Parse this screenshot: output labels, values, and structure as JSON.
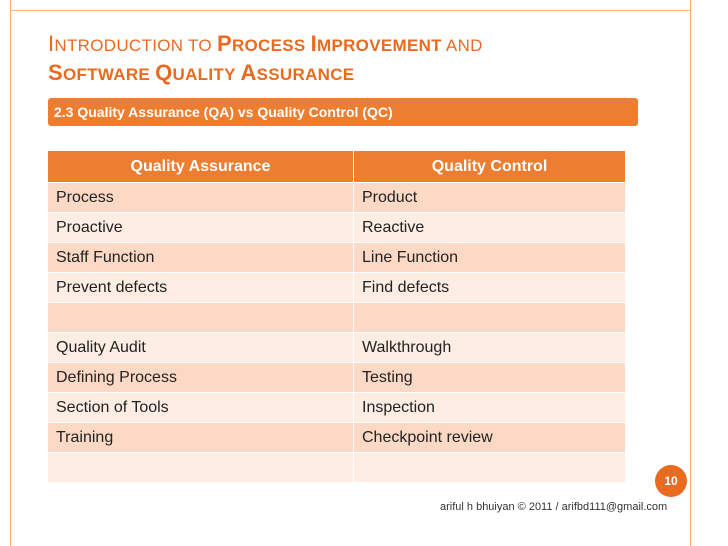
{
  "slide": {
    "title_line1": [
      {
        "text": "I",
        "big": true,
        "bold": false
      },
      {
        "text": "ntroduction to ",
        "big": false,
        "bold": false
      },
      {
        "text": "P",
        "big": true,
        "bold": true
      },
      {
        "text": "rocess ",
        "big": false,
        "bold": true
      },
      {
        "text": "I",
        "big": true,
        "bold": true
      },
      {
        "text": "mprovement",
        "big": false,
        "bold": true
      },
      {
        "text": " and",
        "big": false,
        "bold": false
      }
    ],
    "title_line2": [
      {
        "text": "S",
        "big": true,
        "bold": true
      },
      {
        "text": "oftware ",
        "big": false,
        "bold": true
      },
      {
        "text": "Q",
        "big": true,
        "bold": true
      },
      {
        "text": "uality ",
        "big": false,
        "bold": true
      },
      {
        "text": "A",
        "big": true,
        "bold": true
      },
      {
        "text": "ssurance",
        "big": false,
        "bold": true
      }
    ],
    "subtitle": "2.3 Quality Assurance (QA) vs Quality Control (QC)",
    "page_number": "10",
    "footer": "ariful h bhuiyan © 2011 / arifbd111@gmail.com"
  },
  "table": {
    "headers": [
      "Quality Assurance",
      "Quality Control"
    ],
    "rows": [
      [
        "Process",
        "Product"
      ],
      [
        "Proactive",
        "Reactive"
      ],
      [
        "Staff Function",
        "Line Function"
      ],
      [
        "Prevent defects",
        "Find defects"
      ],
      [
        "",
        ""
      ],
      [
        "Quality Audit",
        "Walkthrough"
      ],
      [
        "Defining Process",
        "Testing"
      ],
      [
        "Section of Tools",
        "Inspection"
      ],
      [
        "Training",
        "Checkpoint review"
      ],
      [
        "",
        ""
      ]
    ]
  },
  "colors": {
    "accent": "#ed7d31",
    "title": "#e86b1f",
    "row_dark": "#fbd9c5",
    "row_light": "#fdede3"
  }
}
